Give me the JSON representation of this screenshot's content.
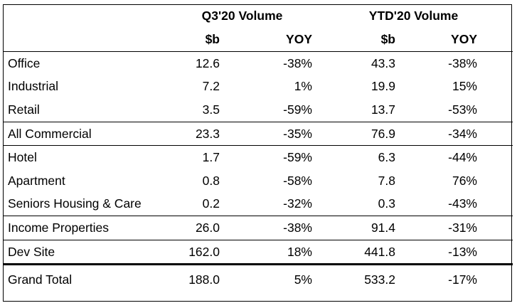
{
  "header": {
    "group_q3": "Q3'20 Volume",
    "group_ytd": "YTD'20 Volume",
    "unit_q3": "$b",
    "yoy_q3": "YOY",
    "unit_ytd": "$b",
    "yoy_ytd": "YOY"
  },
  "rows": [
    {
      "label": "Office",
      "q3": "12.6",
      "q3_yoy": "-38%",
      "ytd": "43.3",
      "ytd_yoy": "-38%"
    },
    {
      "label": "Industrial",
      "q3": "7.2",
      "q3_yoy": "1%",
      "ytd": "19.9",
      "ytd_yoy": "15%"
    },
    {
      "label": "Retail",
      "q3": "3.5",
      "q3_yoy": "-59%",
      "ytd": "13.7",
      "ytd_yoy": "-53%"
    },
    {
      "label": "All Commercial",
      "q3": "23.3",
      "q3_yoy": "-35%",
      "ytd": "76.9",
      "ytd_yoy": "-34%"
    },
    {
      "label": "Hotel",
      "q3": "1.7",
      "q3_yoy": "-59%",
      "ytd": "6.3",
      "ytd_yoy": "-44%"
    },
    {
      "label": "Apartment",
      "q3": "0.8",
      "q3_yoy": "-58%",
      "ytd": "7.8",
      "ytd_yoy": "76%"
    },
    {
      "label": "Seniors Housing & Care",
      "q3": "0.2",
      "q3_yoy": "-32%",
      "ytd": "0.3",
      "ytd_yoy": "-43%"
    },
    {
      "label": "Income Properties",
      "q3": "26.0",
      "q3_yoy": "-38%",
      "ytd": "91.4",
      "ytd_yoy": "-31%"
    },
    {
      "label": "Dev Site",
      "q3": "162.0",
      "q3_yoy": "18%",
      "ytd": "441.8",
      "ytd_yoy": "-13%"
    },
    {
      "label": "Grand Total",
      "q3": "188.0",
      "q3_yoy": "5%",
      "ytd": "533.2",
      "ytd_yoy": "-17%"
    }
  ]
}
